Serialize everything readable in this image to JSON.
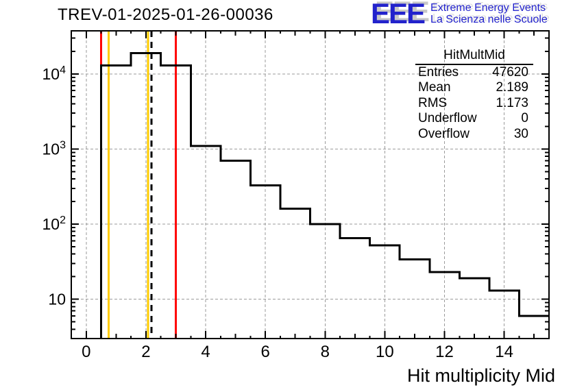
{
  "page": {
    "background": "#ffffff"
  },
  "header": {
    "logo": {
      "acronym": "EEE",
      "line1": "Extreme Energy Events",
      "line2": "La Scienza nelle Scuole",
      "color": "#2222cc",
      "shadow_color": "#c8c8c8"
    }
  },
  "stats_box": {
    "title": "HitMultMid",
    "rows": [
      {
        "label": "Entries",
        "value": "47620"
      },
      {
        "label": "Mean",
        "value": "2.189"
      },
      {
        "label": "RMS",
        "value": "1.173"
      },
      {
        "label": "Underflow",
        "value": "0"
      },
      {
        "label": "Overflow",
        "value": "30"
      }
    ]
  },
  "chart_data": {
    "type": "bar",
    "title": "TREV-01-2025-01-26-00036",
    "xlabel": "Hit multiplicity Mid",
    "ylabel": "",
    "x_scale": "linear",
    "y_scale": "log",
    "xlim": [
      -0.5,
      15.5
    ],
    "ylim": [
      3.0,
      37500
    ],
    "grid": true,
    "legend": "none",
    "bin_width": 1,
    "bin_centers": [
      0,
      1,
      2,
      3,
      4,
      5,
      6,
      7,
      8,
      9,
      10,
      11,
      12,
      13,
      14,
      15
    ],
    "values": [
      0,
      13000,
      19000,
      13000,
      1100,
      700,
      330,
      160,
      100,
      65,
      52,
      34,
      23,
      19,
      13,
      6
    ],
    "x_major_ticks": [
      0,
      2,
      4,
      6,
      8,
      10,
      12,
      14
    ],
    "y_major_ticks": [
      10,
      100,
      1000,
      10000
    ],
    "marker_lines": [
      {
        "x": 0.75,
        "color": "#ffcc00",
        "style": "solid",
        "name": "yellow-marker-low"
      },
      {
        "x": 2.07,
        "color": "#ffcc00",
        "style": "solid",
        "name": "yellow-marker-high"
      },
      {
        "x": 0.5,
        "color": "#ff0000",
        "style": "solid",
        "name": "red-cut-low"
      },
      {
        "x": 3.0,
        "color": "#ff0000",
        "style": "solid",
        "name": "red-cut-high"
      },
      {
        "x": 2.189,
        "color": "#000000",
        "style": "dashed",
        "name": "mean-line"
      }
    ],
    "line_color": "#000000",
    "grid_color": "#9a9a9a",
    "frame_color": "#000000"
  }
}
